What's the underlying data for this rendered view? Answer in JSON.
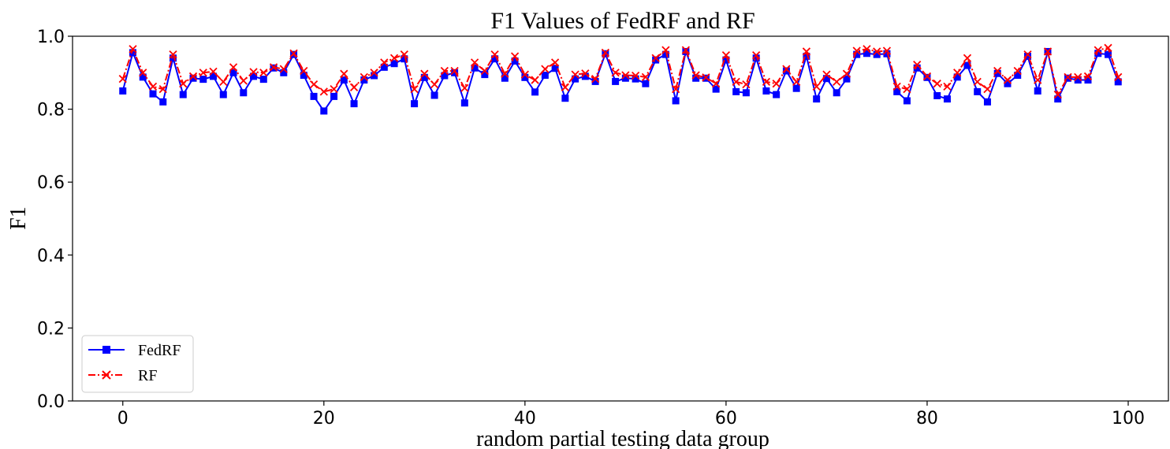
{
  "chart_data": {
    "type": "line",
    "title": "F1 Values of FedRF and RF",
    "xlabel": "random partial testing data group",
    "ylabel": "F1",
    "xlim": [
      -5,
      104
    ],
    "ylim": [
      0.0,
      1.0
    ],
    "xticks": [
      0,
      20,
      40,
      60,
      80,
      100
    ],
    "yticks": [
      0.0,
      0.2,
      0.4,
      0.6,
      0.8,
      1.0
    ],
    "xtick_labels": [
      "0",
      "20",
      "40",
      "60",
      "80",
      "100"
    ],
    "ytick_labels": [
      "0.0",
      "0.2",
      "0.4",
      "0.6",
      "0.8",
      "1.0"
    ],
    "grid": false,
    "legend_position": "lower-left",
    "series": [
      {
        "name": "FedRF",
        "color": "#0000ff",
        "line_style": "solid",
        "marker": "square",
        "x": [
          0,
          1,
          2,
          3,
          4,
          5,
          6,
          7,
          8,
          9,
          10,
          11,
          12,
          13,
          14,
          15,
          16,
          17,
          18,
          19,
          20,
          21,
          22,
          23,
          24,
          25,
          26,
          27,
          28,
          29,
          30,
          31,
          32,
          33,
          34,
          35,
          36,
          37,
          38,
          39,
          40,
          41,
          42,
          43,
          44,
          45,
          46,
          47,
          48,
          49,
          50,
          51,
          52,
          53,
          54,
          55,
          56,
          57,
          58,
          59,
          60,
          61,
          62,
          63,
          64,
          65,
          66,
          67,
          68,
          69,
          70,
          71,
          72,
          73,
          74,
          75,
          76,
          77,
          78,
          79,
          80,
          81,
          82,
          83,
          84,
          85,
          86,
          87,
          88,
          89,
          90,
          91,
          92,
          93,
          94,
          95,
          96,
          97,
          98,
          99
        ],
        "values": [
          0.85,
          0.955,
          0.888,
          0.842,
          0.82,
          0.94,
          0.84,
          0.885,
          0.882,
          0.89,
          0.84,
          0.9,
          0.845,
          0.89,
          0.882,
          0.913,
          0.9,
          0.95,
          0.893,
          0.835,
          0.795,
          0.835,
          0.88,
          0.815,
          0.88,
          0.892,
          0.915,
          0.925,
          0.938,
          0.815,
          0.887,
          0.838,
          0.892,
          0.9,
          0.817,
          0.913,
          0.895,
          0.938,
          0.885,
          0.932,
          0.887,
          0.847,
          0.893,
          0.912,
          0.83,
          0.883,
          0.89,
          0.876,
          0.952,
          0.876,
          0.885,
          0.883,
          0.87,
          0.935,
          0.95,
          0.823,
          0.958,
          0.885,
          0.885,
          0.855,
          0.935,
          0.848,
          0.845,
          0.94,
          0.85,
          0.84,
          0.905,
          0.857,
          0.945,
          0.828,
          0.884,
          0.845,
          0.883,
          0.95,
          0.953,
          0.95,
          0.952,
          0.848,
          0.823,
          0.913,
          0.887,
          0.837,
          0.828,
          0.888,
          0.92,
          0.848,
          0.82,
          0.898,
          0.87,
          0.893,
          0.945,
          0.85,
          0.958,
          0.828,
          0.885,
          0.88,
          0.88,
          0.953,
          0.95,
          0.875
        ]
      },
      {
        "name": "RF",
        "color": "#ff0000",
        "line_style": "dashdot",
        "marker": "x",
        "x": [
          0,
          1,
          2,
          3,
          4,
          5,
          6,
          7,
          8,
          9,
          10,
          11,
          12,
          13,
          14,
          15,
          16,
          17,
          18,
          19,
          20,
          21,
          22,
          23,
          24,
          25,
          26,
          27,
          28,
          29,
          30,
          31,
          32,
          33,
          34,
          35,
          36,
          37,
          38,
          39,
          40,
          41,
          42,
          43,
          44,
          45,
          46,
          47,
          48,
          49,
          50,
          51,
          52,
          53,
          54,
          55,
          56,
          57,
          58,
          59,
          60,
          61,
          62,
          63,
          64,
          65,
          66,
          67,
          68,
          69,
          70,
          71,
          72,
          73,
          74,
          75,
          76,
          77,
          78,
          79,
          80,
          81,
          82,
          83,
          84,
          85,
          86,
          87,
          88,
          89,
          90,
          91,
          92,
          93,
          94,
          95,
          96,
          97,
          98,
          99
        ],
        "values": [
          0.883,
          0.965,
          0.9,
          0.862,
          0.855,
          0.95,
          0.87,
          0.89,
          0.9,
          0.903,
          0.875,
          0.915,
          0.878,
          0.902,
          0.9,
          0.915,
          0.91,
          0.953,
          0.905,
          0.868,
          0.848,
          0.855,
          0.897,
          0.86,
          0.888,
          0.9,
          0.928,
          0.94,
          0.95,
          0.855,
          0.897,
          0.868,
          0.905,
          0.905,
          0.858,
          0.928,
          0.905,
          0.95,
          0.897,
          0.945,
          0.895,
          0.88,
          0.91,
          0.928,
          0.86,
          0.895,
          0.898,
          0.883,
          0.955,
          0.9,
          0.893,
          0.892,
          0.888,
          0.94,
          0.962,
          0.855,
          0.962,
          0.893,
          0.887,
          0.87,
          0.948,
          0.875,
          0.868,
          0.948,
          0.875,
          0.87,
          0.91,
          0.875,
          0.958,
          0.862,
          0.895,
          0.875,
          0.897,
          0.96,
          0.965,
          0.958,
          0.96,
          0.862,
          0.855,
          0.922,
          0.89,
          0.87,
          0.862,
          0.9,
          0.94,
          0.875,
          0.855,
          0.905,
          0.88,
          0.905,
          0.95,
          0.88,
          0.958,
          0.84,
          0.888,
          0.888,
          0.89,
          0.962,
          0.968,
          0.888
        ]
      }
    ]
  }
}
